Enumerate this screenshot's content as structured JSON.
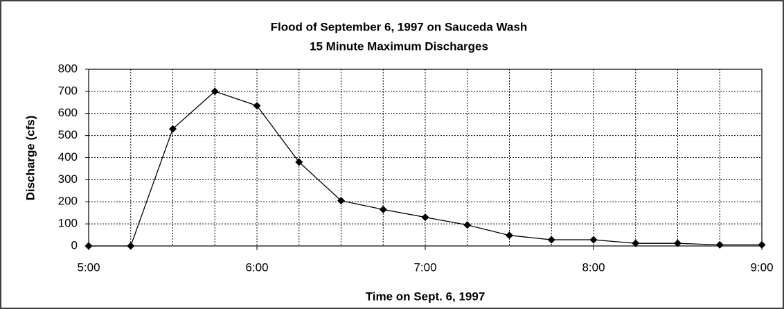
{
  "chart_data": {
    "type": "line",
    "title": "Flood of September 6, 1997 on Sauceda Wash",
    "subtitle": "15 Minute Maximum Discharges",
    "x_label": "Time on Sept. 6, 1997",
    "y_label": "Discharge (cfs)",
    "x": [
      5,
      5.25,
      5.5,
      5.75,
      6,
      6.25,
      6.5,
      6.75,
      7,
      7.25,
      7.5,
      7.75,
      8,
      8.25,
      8.5,
      8.75,
      9
    ],
    "series": [
      {
        "name": "Discharge",
        "color": "#000000",
        "values": [
          0,
          0,
          530,
          700,
          635,
          380,
          205,
          165,
          130,
          95,
          48,
          28,
          28,
          12,
          12,
          5,
          5
        ]
      }
    ],
    "xlim": [
      5,
      9
    ],
    "xticks": [
      {
        "value": 5,
        "label": "5:00"
      },
      {
        "value": 6,
        "label": "6:00"
      },
      {
        "value": 7,
        "label": "7:00"
      },
      {
        "value": 8,
        "label": "8:00"
      },
      {
        "value": 9,
        "label": "9:00"
      }
    ],
    "xminorticks": [
      5.25,
      5.5,
      5.75,
      6.25,
      6.5,
      6.75,
      7.25,
      7.5,
      7.75,
      8.25,
      8.5,
      8.75
    ],
    "ylim": [
      0,
      800
    ],
    "yticks": [
      0,
      100,
      200,
      300,
      400,
      500,
      600,
      700,
      800
    ],
    "grid": true,
    "legend": false
  }
}
